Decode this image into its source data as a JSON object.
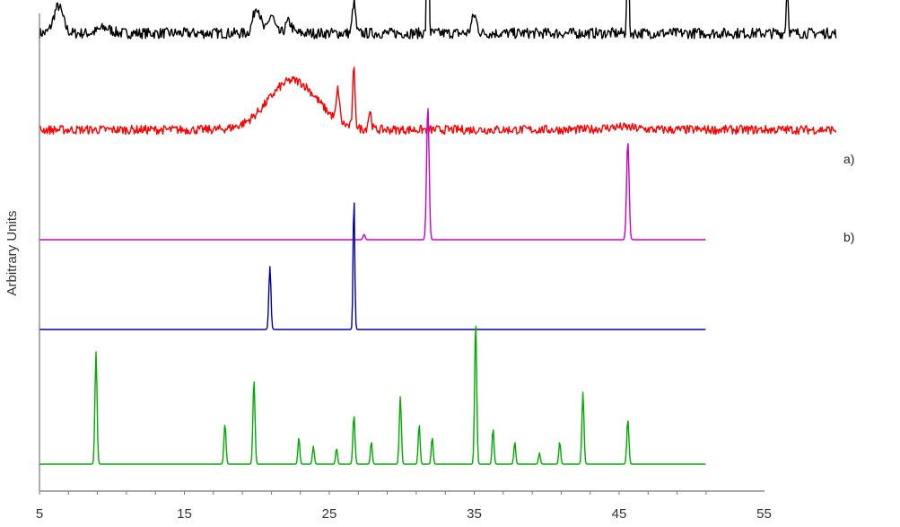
{
  "chart_data": {
    "type": "line",
    "title": "",
    "xlabel": "",
    "ylabel": "Arbitrary Units",
    "xlim": [
      5,
      60
    ],
    "x_ticks": [
      5,
      15,
      25,
      35,
      45,
      55
    ],
    "grid": false,
    "legend": "none",
    "series": [
      {
        "name": "a)",
        "color": "#000000",
        "x_range": [
          5,
          60
        ],
        "baseline": 0.76,
        "noise": 0.012,
        "peaks": [
          {
            "x": 6.3,
            "h": 0.06,
            "w": 0.45
          },
          {
            "x": 9.5,
            "h": 0.012,
            "w": 0.6
          },
          {
            "x": 20.0,
            "h": 0.06,
            "w": 0.35
          },
          {
            "x": 21.0,
            "h": 0.04,
            "w": 0.3
          },
          {
            "x": 22.2,
            "h": 0.025,
            "w": 0.3
          },
          {
            "x": 26.7,
            "h": 0.07,
            "w": 0.15
          },
          {
            "x": 31.8,
            "h": 0.66,
            "w": 0.08
          },
          {
            "x": 35.0,
            "h": 0.04,
            "w": 0.25
          },
          {
            "x": 45.6,
            "h": 0.34,
            "w": 0.08
          },
          {
            "x": 56.6,
            "h": 0.1,
            "w": 0.1
          }
        ]
      },
      {
        "name": "b)",
        "color": "#ff0000",
        "x_range": [
          5,
          60
        ],
        "baseline": 0.545,
        "noise": 0.01,
        "peaks": [
          {
            "x": 22.5,
            "h": 0.11,
            "w": 2.4
          },
          {
            "x": 25.6,
            "h": 0.07,
            "w": 0.15
          },
          {
            "x": 26.7,
            "h": 0.13,
            "w": 0.12
          },
          {
            "x": 27.8,
            "h": 0.04,
            "w": 0.15
          },
          {
            "x": 45.0,
            "h": 0.006,
            "w": 1.5
          }
        ]
      },
      {
        "color": "#cc00cc",
        "x_range": [
          5,
          51
        ],
        "baseline": 0.3,
        "noise": 0,
        "peaks": [
          {
            "x": 27.4,
            "h": 0.012,
            "w": 0.1
          },
          {
            "x": 31.8,
            "h": 0.3,
            "w": 0.12
          },
          {
            "x": 45.6,
            "h": 0.22,
            "w": 0.12
          }
        ]
      },
      {
        "color": "#0000aa",
        "x_range": [
          5,
          51
        ],
        "baseline": 0.1,
        "noise": 0,
        "peaks": [
          {
            "x": 20.9,
            "h": 0.14,
            "w": 0.1
          },
          {
            "x": 26.7,
            "h": 0.3,
            "w": 0.08
          }
        ]
      },
      {
        "color": "#00aa00",
        "x_range": [
          5,
          51
        ],
        "baseline": -0.2,
        "noise": 0,
        "peaks": [
          {
            "x": 8.9,
            "h": 0.25,
            "w": 0.1
          },
          {
            "x": 17.8,
            "h": 0.09,
            "w": 0.1
          },
          {
            "x": 19.8,
            "h": 0.19,
            "w": 0.1
          },
          {
            "x": 22.9,
            "h": 0.06,
            "w": 0.09
          },
          {
            "x": 23.9,
            "h": 0.04,
            "w": 0.09
          },
          {
            "x": 25.5,
            "h": 0.035,
            "w": 0.09
          },
          {
            "x": 26.7,
            "h": 0.11,
            "w": 0.1
          },
          {
            "x": 27.9,
            "h": 0.05,
            "w": 0.09
          },
          {
            "x": 29.9,
            "h": 0.15,
            "w": 0.1
          },
          {
            "x": 31.2,
            "h": 0.09,
            "w": 0.09
          },
          {
            "x": 32.1,
            "h": 0.06,
            "w": 0.09
          },
          {
            "x": 35.1,
            "h": 0.32,
            "w": 0.1
          },
          {
            "x": 36.3,
            "h": 0.08,
            "w": 0.09
          },
          {
            "x": 37.8,
            "h": 0.05,
            "w": 0.09
          },
          {
            "x": 39.5,
            "h": 0.025,
            "w": 0.09
          },
          {
            "x": 40.9,
            "h": 0.05,
            "w": 0.09
          },
          {
            "x": 42.5,
            "h": 0.16,
            "w": 0.1
          },
          {
            "x": 45.6,
            "h": 0.1,
            "w": 0.1
          }
        ]
      }
    ]
  }
}
